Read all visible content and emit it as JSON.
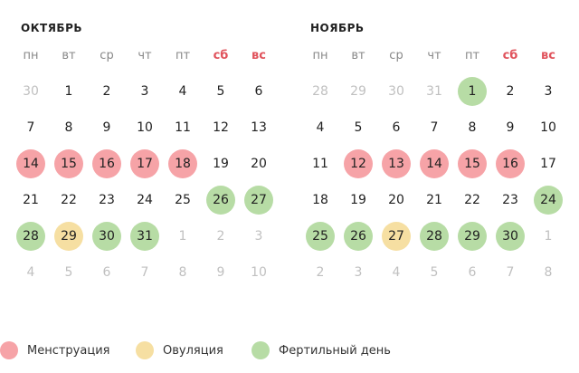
{
  "calendar": {
    "months": [
      {
        "title": "ОКТЯБРЬ",
        "weekdays": [
          "пн",
          "вт",
          "ср",
          "чт",
          "пт",
          "сб",
          "вс"
        ],
        "weeks": [
          [
            {
              "d": "30",
              "t": "muted"
            },
            {
              "d": "1"
            },
            {
              "d": "2"
            },
            {
              "d": "3"
            },
            {
              "d": "4"
            },
            {
              "d": "5"
            },
            {
              "d": "6"
            }
          ],
          [
            {
              "d": "7"
            },
            {
              "d": "8"
            },
            {
              "d": "9"
            },
            {
              "d": "10"
            },
            {
              "d": "11"
            },
            {
              "d": "12"
            },
            {
              "d": "13"
            }
          ],
          [
            {
              "d": "14",
              "t": "menstruation"
            },
            {
              "d": "15",
              "t": "menstruation"
            },
            {
              "d": "16",
              "t": "menstruation"
            },
            {
              "d": "17",
              "t": "menstruation"
            },
            {
              "d": "18",
              "t": "menstruation"
            },
            {
              "d": "19"
            },
            {
              "d": "20"
            }
          ],
          [
            {
              "d": "21"
            },
            {
              "d": "22"
            },
            {
              "d": "23"
            },
            {
              "d": "24"
            },
            {
              "d": "25"
            },
            {
              "d": "26",
              "t": "fertile"
            },
            {
              "d": "27",
              "t": "fertile"
            }
          ],
          [
            {
              "d": "28",
              "t": "fertile"
            },
            {
              "d": "29",
              "t": "ovulation"
            },
            {
              "d": "30",
              "t": "fertile"
            },
            {
              "d": "31",
              "t": "fertile"
            },
            {
              "d": "1",
              "t": "muted"
            },
            {
              "d": "2",
              "t": "muted"
            },
            {
              "d": "3",
              "t": "muted"
            }
          ],
          [
            {
              "d": "4",
              "t": "muted"
            },
            {
              "d": "5",
              "t": "muted"
            },
            {
              "d": "6",
              "t": "muted"
            },
            {
              "d": "7",
              "t": "muted"
            },
            {
              "d": "8",
              "t": "muted"
            },
            {
              "d": "9",
              "t": "muted"
            },
            {
              "d": "10",
              "t": "muted"
            }
          ]
        ]
      },
      {
        "title": "НОЯБРЬ",
        "weekdays": [
          "пн",
          "вт",
          "ср",
          "чт",
          "пт",
          "сб",
          "вс"
        ],
        "weeks": [
          [
            {
              "d": "28",
              "t": "muted"
            },
            {
              "d": "29",
              "t": "muted"
            },
            {
              "d": "30",
              "t": "muted"
            },
            {
              "d": "31",
              "t": "muted"
            },
            {
              "d": "1",
              "t": "fertile"
            },
            {
              "d": "2"
            },
            {
              "d": "3"
            }
          ],
          [
            {
              "d": "4"
            },
            {
              "d": "5"
            },
            {
              "d": "6"
            },
            {
              "d": "7"
            },
            {
              "d": "8"
            },
            {
              "d": "9"
            },
            {
              "d": "10"
            }
          ],
          [
            {
              "d": "11"
            },
            {
              "d": "12",
              "t": "menstruation"
            },
            {
              "d": "13",
              "t": "menstruation"
            },
            {
              "d": "14",
              "t": "menstruation"
            },
            {
              "d": "15",
              "t": "menstruation"
            },
            {
              "d": "16",
              "t": "menstruation"
            },
            {
              "d": "17"
            }
          ],
          [
            {
              "d": "18"
            },
            {
              "d": "19"
            },
            {
              "d": "20"
            },
            {
              "d": "21"
            },
            {
              "d": "22"
            },
            {
              "d": "23"
            },
            {
              "d": "24",
              "t": "fertile"
            }
          ],
          [
            {
              "d": "25",
              "t": "fertile"
            },
            {
              "d": "26",
              "t": "fertile"
            },
            {
              "d": "27",
              "t": "ovulation"
            },
            {
              "d": "28",
              "t": "fertile"
            },
            {
              "d": "29",
              "t": "fertile"
            },
            {
              "d": "30",
              "t": "fertile"
            },
            {
              "d": "1",
              "t": "muted"
            }
          ],
          [
            {
              "d": "2",
              "t": "muted"
            },
            {
              "d": "3",
              "t": "muted"
            },
            {
              "d": "4",
              "t": "muted"
            },
            {
              "d": "5",
              "t": "muted"
            },
            {
              "d": "6",
              "t": "muted"
            },
            {
              "d": "7",
              "t": "muted"
            },
            {
              "d": "8",
              "t": "muted"
            }
          ]
        ]
      }
    ]
  },
  "legend": {
    "menstruation": "Менструация",
    "ovulation": "Овуляция",
    "fertile": "Фертильный день"
  },
  "colors": {
    "menstruation": "#f6a3a7",
    "ovulation": "#f6dfa2",
    "fertile": "#b7dca5",
    "weekend_label": "#e0535c",
    "muted_day": "#c0c0c0"
  }
}
